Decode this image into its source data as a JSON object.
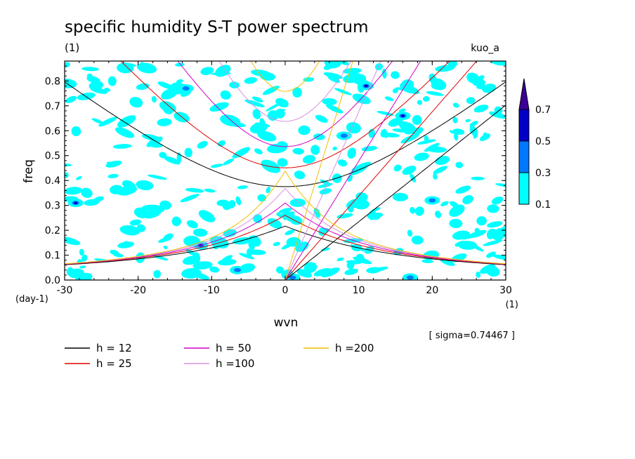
{
  "chart_data": {
    "type": "contour",
    "title": "specific humidity S-T power spectrum",
    "subtitle_unit": "(1)",
    "dataset_label": "kuo_a",
    "xlabel": "wvn",
    "x_unit": "(1)",
    "ylabel": "freq",
    "y_unit": "(day-1)",
    "xlim": [
      -30,
      30
    ],
    "ylim": [
      0.0,
      0.88
    ],
    "x_ticks": [
      -30,
      -20,
      -10,
      0,
      10,
      20,
      30
    ],
    "y_ticks": [
      0.0,
      0.1,
      0.2,
      0.3,
      0.4,
      0.5,
      0.6,
      0.7,
      0.8
    ],
    "sigma_note": "[ sigma=0.74467 ]",
    "colorbar": {
      "levels": [
        0.1,
        0.3,
        0.5,
        0.7
      ],
      "colors": [
        "#00ffff",
        "#0078ff",
        "#0000c8",
        "#3c0096"
      ]
    },
    "dispersion_curves": [
      {
        "label": "h = 12",
        "h": 12,
        "color": "#000000"
      },
      {
        "label": "h = 25",
        "h": 25,
        "color": "#e00000"
      },
      {
        "label": "h = 50",
        "h": 50,
        "color": "#d000c8"
      },
      {
        "label": "h =100",
        "h": 100,
        "color": "#d890e0"
      },
      {
        "label": "h =200",
        "h": 200,
        "color": "#f0c000"
      }
    ],
    "strong_spots": [
      {
        "x": -28.5,
        "y": 0.31,
        "level": 0.5
      },
      {
        "x": -11.5,
        "y": 0.14,
        "level": 0.5
      },
      {
        "x": 11.0,
        "y": 0.78,
        "level": 0.5
      },
      {
        "x": 16.0,
        "y": 0.66,
        "level": 0.5
      },
      {
        "x": 20.0,
        "y": 0.32,
        "level": 0.3
      },
      {
        "x": -13.5,
        "y": 0.77,
        "level": 0.3
      },
      {
        "x": -6.5,
        "y": 0.04,
        "level": 0.3
      },
      {
        "x": 1.0,
        "y": 0.01,
        "level": 0.3
      },
      {
        "x": 17.0,
        "y": 0.01,
        "level": 0.3
      },
      {
        "x": 8.0,
        "y": 0.58,
        "level": 0.3
      }
    ]
  }
}
